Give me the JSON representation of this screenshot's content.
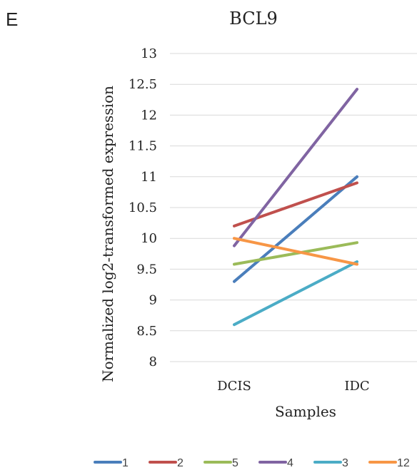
{
  "panel_label": "E",
  "chart_data": {
    "type": "line",
    "title": "BCL9",
    "xlabel": "Samples",
    "ylabel": "Normalized log2-transformed expression",
    "categories": [
      "DCIS",
      "IDC"
    ],
    "ylim": [
      8,
      13
    ],
    "yticks": [
      8,
      8.5,
      9,
      9.5,
      10,
      10.5,
      11,
      11.5,
      12,
      12.5,
      13
    ],
    "ytick_labels": [
      "8",
      "8.5",
      "9",
      "9.5",
      "10",
      "10.5",
      "11",
      "11.5",
      "12",
      "12.5",
      "13"
    ],
    "grid": true,
    "legend_position": "bottom",
    "series": [
      {
        "name": "1",
        "color": "#4a7ebb",
        "values": [
          9.3,
          11.0
        ]
      },
      {
        "name": "2",
        "color": "#c0504d",
        "values": [
          10.2,
          10.9
        ]
      },
      {
        "name": "5",
        "color": "#9bbb59",
        "values": [
          9.58,
          9.93
        ]
      },
      {
        "name": "4",
        "color": "#8064a2",
        "values": [
          9.88,
          12.42
        ]
      },
      {
        "name": "3",
        "color": "#4bacc6",
        "values": [
          8.6,
          9.62
        ]
      },
      {
        "name": "12",
        "color": "#f79646",
        "values": [
          10.0,
          9.58
        ]
      }
    ]
  }
}
